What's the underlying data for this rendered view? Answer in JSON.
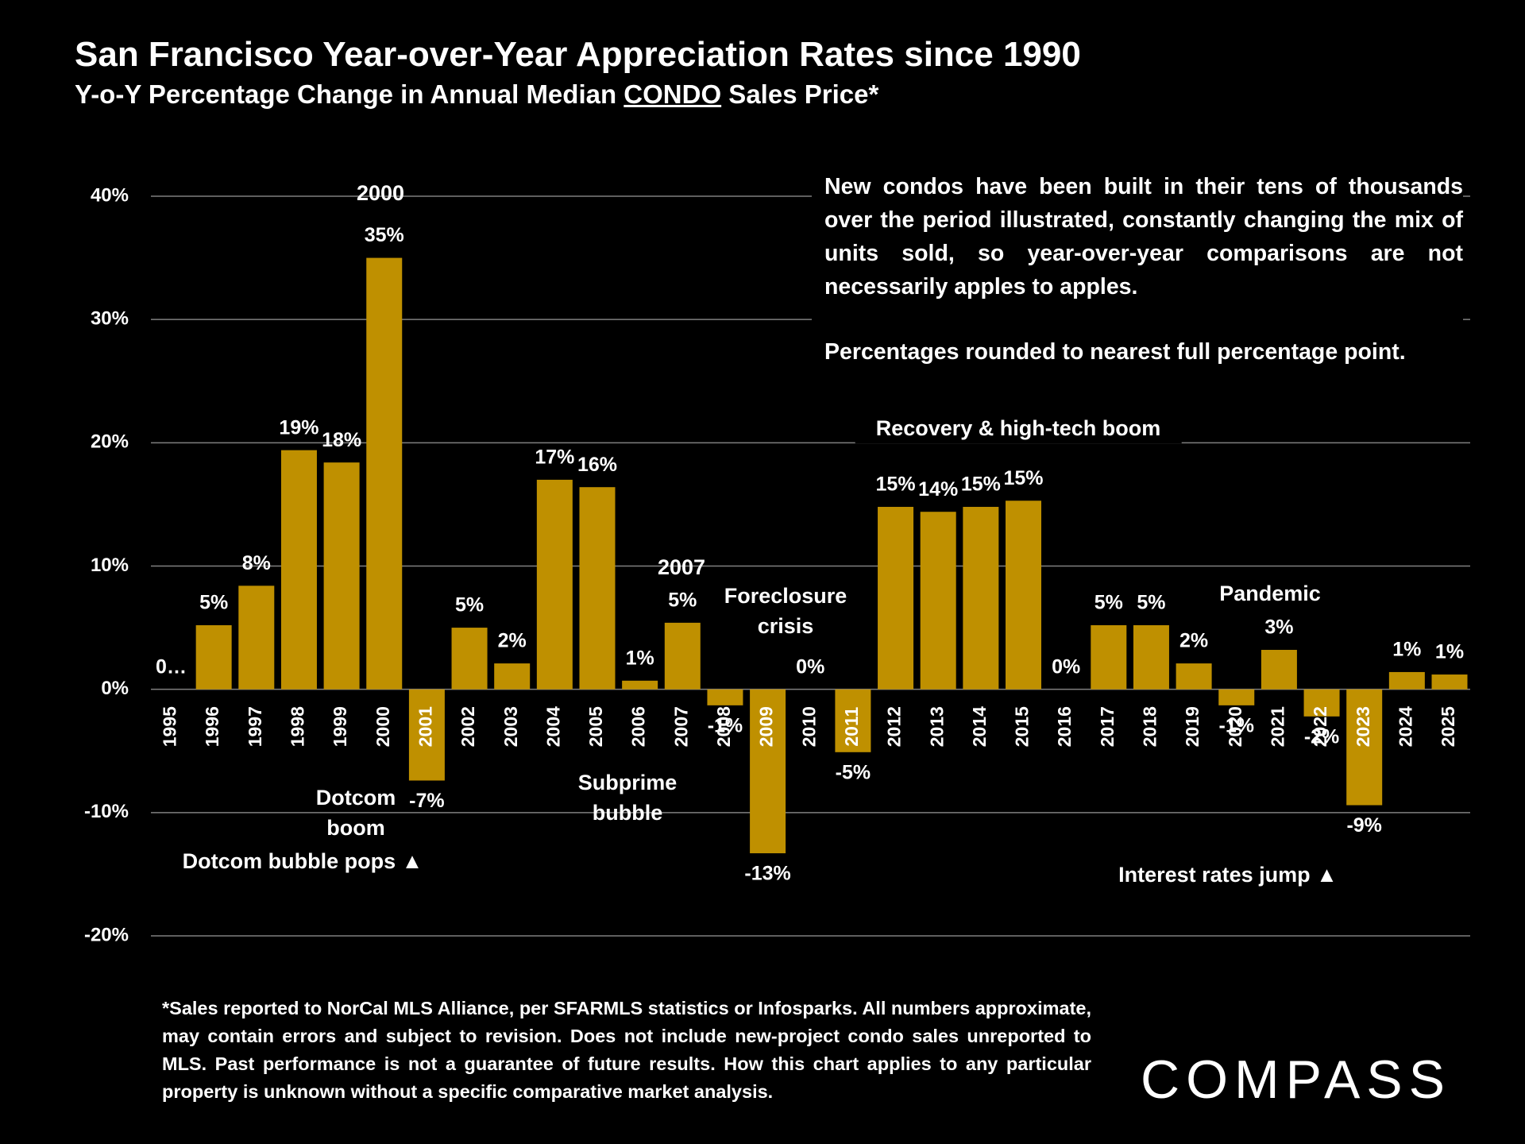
{
  "chart_data": {
    "type": "bar",
    "title": "San Francisco Year-over-Year Appreciation Rates since 1990",
    "subtitle": {
      "before": "Y-o-Y Percentage Change in Annual Median ",
      "underlined": "CONDO",
      "after": " Sales Price*"
    },
    "categories": [
      "1995",
      "1996",
      "1997",
      "1998",
      "1999",
      "2000",
      "2001",
      "2002",
      "2003",
      "2004",
      "2005",
      "2006",
      "2007",
      "2008",
      "2009",
      "2010",
      "2011",
      "2012",
      "2013",
      "2014",
      "2015",
      "2016",
      "2017",
      "2018",
      "2019",
      "2020",
      "2021",
      "2022",
      "2023",
      "2024",
      "2025"
    ],
    "values": [
      0,
      5.2,
      8.4,
      19.4,
      18.4,
      35,
      -7.4,
      5,
      2.1,
      17,
      16.4,
      0.7,
      5.4,
      -1.3,
      -13.3,
      0,
      -5.1,
      14.8,
      14.4,
      14.8,
      15.3,
      0,
      5.2,
      5.2,
      2.1,
      -1.3,
      3.2,
      -2.2,
      -9.4,
      1.4,
      1.2
    ],
    "value_labels": [
      "0…",
      "5%",
      "8%",
      "19%",
      "18%",
      "35%",
      "-7%",
      "5%",
      "2%",
      "17%",
      "16%",
      "1%",
      "5%",
      "-1%",
      "-13%",
      "0%",
      "-5%",
      "15%",
      "14%",
      "15%",
      "15%",
      "0%",
      "5%",
      "5%",
      "2%",
      "-1%",
      "3%",
      "-2%",
      "-9%",
      "1%",
      "1%"
    ],
    "color": "#bf9000",
    "ylim": [
      -20,
      40
    ],
    "yticks": [
      {
        "value": -20,
        "label": "-20%"
      },
      {
        "value": -10,
        "label": "-10%"
      },
      {
        "value": 0,
        "label": "0%"
      },
      {
        "value": 10,
        "label": "10%"
      },
      {
        "value": 20,
        "label": "20%"
      },
      {
        "value": 30,
        "label": "30%"
      },
      {
        "value": 40,
        "label": "40%"
      }
    ],
    "grid": true,
    "annotations": [
      "2000",
      "2007",
      "Foreclosure crisis",
      "Dotcom boom",
      "Dotcom bubble pops ▲",
      "Subprime bubble",
      "Recovery & high-tech boom",
      "Pandemic",
      "Interest rates jump ▲"
    ],
    "note": [
      "New condos have been built in their tens of thousands over the period illustrated, constantly changing the mix of units sold, so year-over-year comparisons are not necessarily apples to apples.",
      "Percentages rounded to nearest full percentage point."
    ],
    "footnote": "*Sales reported to NorCal MLS Alliance, per SFARMLS statistics or Infosparks. All numbers approximate, may contain errors and subject to revision. Does not include new-project condo sales unreported to MLS. Past performance is not a guarantee of future results. How this chart applies to any particular property is unknown without a specific comparative market analysis.",
    "logo": "COMPASS"
  }
}
